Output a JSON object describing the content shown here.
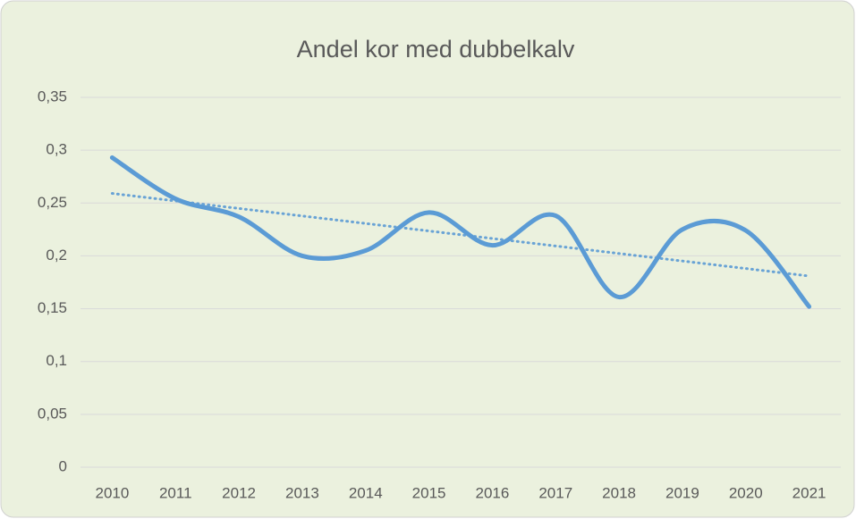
{
  "chart_data": {
    "type": "line",
    "title": "Andel kor med dubbelkalv",
    "categories": [
      "2010",
      "2011",
      "2012",
      "2013",
      "2014",
      "2015",
      "2016",
      "2017",
      "2018",
      "2019",
      "2020",
      "2021"
    ],
    "series": [
      {
        "name": "Andel kor med dubbelkalv",
        "color": "#5b9bd5",
        "values": [
          0.293,
          0.254,
          0.237,
          0.2,
          0.205,
          0.241,
          0.21,
          0.238,
          0.161,
          0.225,
          0.224,
          0.152
        ]
      }
    ],
    "smooth": true,
    "trendline": "linear",
    "ylim": [
      0,
      0.35
    ],
    "yticks": [
      0,
      {
        "value": 0.05,
        "label": "0,05"
      },
      {
        "value": 0.1,
        "label": "0,1"
      },
      {
        "value": 0.15,
        "label": "0,15"
      },
      {
        "value": 0.2,
        "label": "0,2"
      },
      {
        "value": 0.25,
        "label": "0,25"
      },
      {
        "value": 0.3,
        "label": "0,3"
      },
      {
        "value": 0.35,
        "label": "0,35"
      }
    ],
    "grid": true
  }
}
